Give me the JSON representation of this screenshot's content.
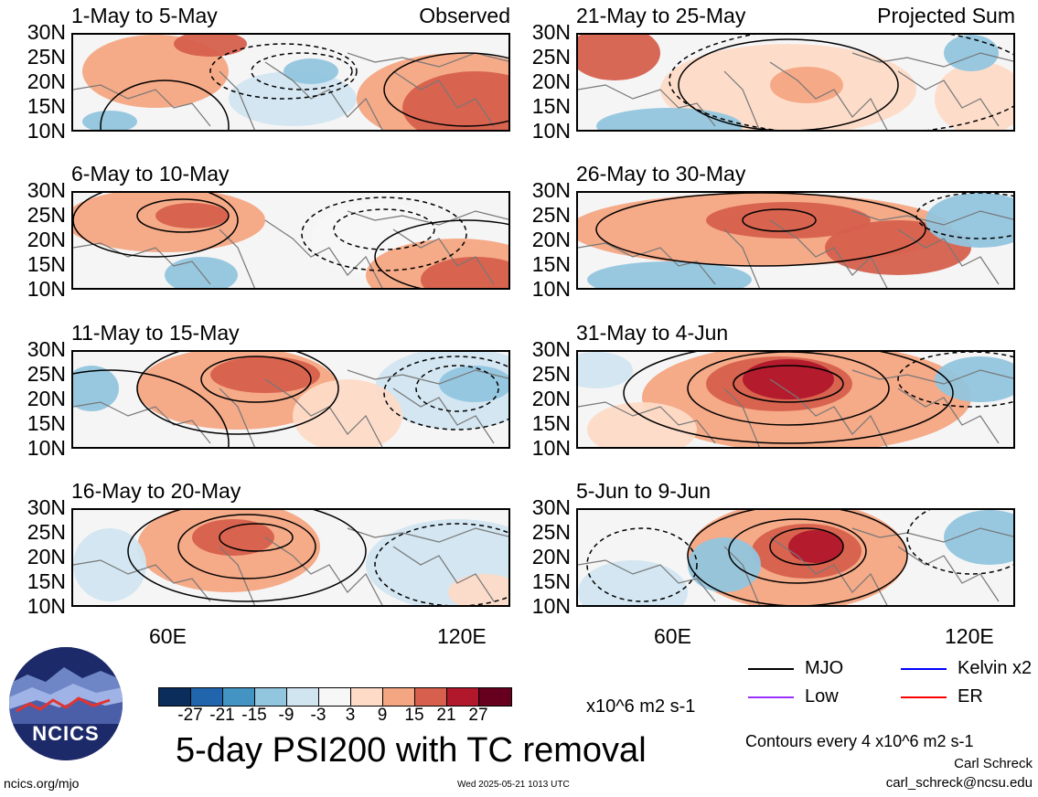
{
  "panels": [
    {
      "title": "1-May to 5-May",
      "corner": "Observed"
    },
    {
      "title": "21-May to 25-May",
      "corner": "Projected Sum"
    },
    {
      "title": "6-May to 10-May",
      "corner": ""
    },
    {
      "title": "26-May to 30-May",
      "corner": ""
    },
    {
      "title": "11-May to 15-May",
      "corner": ""
    },
    {
      "title": "31-May to 4-Jun",
      "corner": ""
    },
    {
      "title": "16-May to 20-May",
      "corner": ""
    },
    {
      "title": "5-Jun to 9-Jun",
      "corner": ""
    }
  ],
  "lat_ticks": [
    "30N",
    "25N",
    "20N",
    "15N",
    "10N"
  ],
  "lon_ticks": [
    "60E",
    "120E"
  ],
  "colorbar": {
    "colors": [
      "#0b2d5c",
      "#2166ac",
      "#4393c3",
      "#92c5de",
      "#d1e5f0",
      "#f7f7f7",
      "#fddbc7",
      "#f4a582",
      "#d6604d",
      "#b2182b",
      "#67001f"
    ],
    "ticks": [
      "-27",
      "-21",
      "-15",
      "-9",
      "-3",
      "3",
      "9",
      "15",
      "21",
      "27"
    ],
    "units": "x10^6 m2 s-1"
  },
  "title": "5-day PSI200 with TC removal",
  "legend": [
    {
      "label": "MJO",
      "color": "#000000"
    },
    {
      "label": "Kelvin x2",
      "color": "#0000ff"
    },
    {
      "label": "Low",
      "color": "#9b30ff"
    },
    {
      "label": "ER",
      "color": "#ff0000"
    }
  ],
  "contour_note": "Contours every 4 x10^6 m2 s-1",
  "author": "Carl Schreck",
  "email": "carl_schreck@ncsu.edu",
  "site": "ncics.org/mjo",
  "timestamp": "Wed 2025-05-21 1013 UTC",
  "logo_text": "NCICS",
  "chart_data": {
    "type": "heatmap",
    "panels": [
      "1-May to 5-May",
      "21-May to 25-May",
      "6-May to 10-May",
      "26-May to 30-May",
      "11-May to 15-May",
      "31-May to 4-Jun",
      "16-May to 20-May",
      "5-Jun to 9-Jun"
    ],
    "y_ticks": [
      "30N",
      "25N",
      "20N",
      "15N",
      "10N"
    ],
    "x_ticks": [
      "60E",
      "120E"
    ],
    "color_levels": [
      -27,
      -21,
      -15,
      -9,
      -3,
      3,
      9,
      15,
      21,
      27
    ],
    "units": "x10^6 m2 s-1",
    "title": "5-day PSI200 with TC removal"
  }
}
